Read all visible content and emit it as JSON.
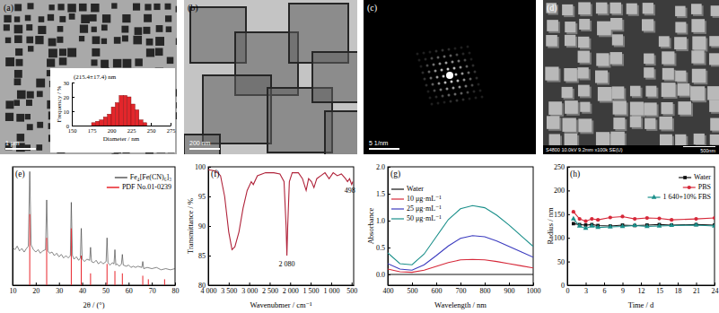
{
  "images": [
    {
      "label": "(a)",
      "scale_bar": "1 μm"
    },
    {
      "label": "(b)",
      "scale_bar": "200 nm"
    },
    {
      "label": "(c)",
      "scale_bar": "5 1/nm"
    },
    {
      "label": "(d)",
      "info": "S4800 10.0kV 9.2mm x100k SE(U)",
      "scale_bar": "500nm"
    }
  ],
  "chart_data": [
    {
      "type": "bar",
      "title": "(215.4±17.4) nm",
      "x_label": "Diameter / nm",
      "y_label": "Frequency / %",
      "bins": [
        175,
        180,
        185,
        190,
        195,
        200,
        205,
        210,
        215,
        220,
        225,
        230,
        235,
        240,
        245
      ],
      "values": [
        2,
        3,
        4,
        6,
        8,
        13,
        16,
        21,
        21,
        20,
        15,
        11,
        4,
        2
      ],
      "color": "#e3262b",
      "xlim": [
        150,
        275
      ],
      "xticks": [
        150,
        175,
        200,
        225,
        250,
        275
      ],
      "ylim": [
        0,
        30
      ],
      "yticks": [
        0,
        10,
        20,
        30
      ]
    },
    {
      "label": "(e)",
      "type": "line",
      "x_label": "2θ / (°)",
      "xlim": [
        10,
        80
      ],
      "xticks": [
        10,
        20,
        30,
        40,
        50,
        60,
        70,
        80
      ],
      "ylim": [
        0,
        100
      ],
      "tick_labels": "x",
      "legend": "upper right",
      "series": [
        {
          "name": "Fe₄[Fe(CN)₆]₃",
          "color": "#333333",
          "x": [
            10,
            11,
            12,
            13,
            14,
            15,
            16,
            16.8,
            17.4,
            18,
            19,
            20,
            21,
            22,
            23,
            24.2,
            24.7,
            25.2,
            26,
            27,
            28,
            29,
            30,
            31,
            32,
            33,
            34,
            34.9,
            35.3,
            35.8,
            36.5,
            37.5,
            38.5,
            39.2,
            39.6,
            40,
            41,
            42,
            43.2,
            43.6,
            44,
            45,
            46,
            47,
            48,
            49,
            50.3,
            50.7,
            51.1,
            52,
            53,
            53.7,
            54.1,
            54.5,
            55,
            56,
            56.9,
            57.3,
            57.7,
            59,
            60,
            61,
            62,
            63,
            64,
            65.7,
            66.1,
            66.5,
            68,
            70,
            72,
            74,
            76,
            78,
            80
          ],
          "values": [
            32,
            30,
            33,
            29,
            31,
            28,
            31,
            33,
            96,
            34,
            30,
            28,
            30,
            27,
            29,
            30,
            72,
            29,
            27,
            28,
            25,
            27,
            24,
            26,
            23,
            25,
            23,
            25,
            70,
            25,
            22,
            24,
            21,
            23,
            48,
            22,
            20,
            22,
            21,
            32,
            20,
            19,
            21,
            18,
            20,
            18,
            20,
            40,
            19,
            17,
            19,
            18,
            30,
            17,
            18,
            16,
            18,
            26,
            17,
            16,
            17,
            15,
            16,
            15,
            16,
            15,
            20,
            14,
            15,
            14,
            15,
            13,
            14,
            13,
            14
          ]
        },
        {
          "name": "PDF No.01-0239",
          "type": "stick",
          "color": "#e8232a",
          "x": [
            17.4,
            24.7,
            35.3,
            39.6,
            43.6,
            50.7,
            54.1,
            57.3,
            66.1,
            68.5,
            75.5
          ],
          "values": [
            60,
            40,
            48,
            25,
            10,
            18,
            12,
            10,
            8,
            5,
            5
          ]
        }
      ]
    },
    {
      "label": "(f)",
      "type": "line",
      "x_label": "Wavenubmer / cm⁻¹",
      "y_label": "Transmittance / %",
      "xlim": [
        4000,
        450
      ],
      "xticks": [
        {
          "value": 4000,
          "label": "4 000"
        },
        {
          "value": 3500,
          "label": "3 500"
        },
        {
          "value": 3000,
          "label": "3 000"
        },
        {
          "value": 2500,
          "label": "2 500"
        },
        {
          "value": 2000,
          "label": "2 000"
        },
        {
          "value": 1500,
          "label": "1 500"
        },
        {
          "value": 1000,
          "label": "1 000"
        },
        500
      ],
      "ylim": [
        80,
        100
      ],
      "yticks": [
        80,
        85,
        90,
        95,
        100
      ],
      "color": "#b0233a",
      "x": [
        4000,
        3900,
        3800,
        3700,
        3600,
        3500,
        3420,
        3350,
        3250,
        3150,
        3050,
        2950,
        2900,
        2800,
        2600,
        2400,
        2250,
        2150,
        2100,
        2080,
        2060,
        2020,
        1950,
        1800,
        1700,
        1610,
        1550,
        1480,
        1420,
        1350,
        1250,
        1150,
        1050,
        950,
        850,
        750,
        650,
        600,
        550,
        498,
        470
      ],
      "values": [
        99.5,
        99.4,
        99.2,
        98.5,
        95,
        89,
        86,
        86.5,
        89,
        93,
        96,
        97.5,
        97,
        98.5,
        99,
        99,
        98.8,
        97.5,
        90,
        85,
        90,
        97.5,
        99,
        99,
        98,
        96,
        98,
        97.5,
        96.5,
        98,
        98.5,
        99,
        98,
        99,
        98.5,
        98.8,
        98,
        97.5,
        98,
        97,
        97.5
      ],
      "annotations": [
        {
          "text": "2 080",
          "x": 2080,
          "y": 84
        },
        {
          "text": "498",
          "x": 498,
          "y": 96.5
        }
      ]
    },
    {
      "label": "(g)",
      "type": "line",
      "x_label": "Wavelength / nm",
      "y_label": "Absorbance",
      "xlim": [
        400,
        1000
      ],
      "xticks": [
        400,
        500,
        600,
        700,
        800,
        900,
        1000
      ],
      "ylim": [
        -0.2,
        2.0
      ],
      "yticks": [
        {
          "value": 0,
          "label": "0.0"
        },
        {
          "value": 0.5,
          "label": "0.5"
        },
        {
          "value": 1,
          "label": "1.0"
        },
        {
          "value": 1.5,
          "label": "1.5"
        },
        {
          "value": 2,
          "label": "2.0"
        }
      ],
      "legend": "upper left",
      "x": [
        400,
        450,
        500,
        550,
        600,
        650,
        700,
        750,
        800,
        850,
        900,
        950,
        1000
      ],
      "series": [
        {
          "name": "Water",
          "color": "#111111",
          "values": [
            0,
            0,
            0,
            0,
            0,
            0,
            0,
            0,
            0,
            0,
            0,
            0,
            0
          ]
        },
        {
          "name": "10 μg·mL⁻¹",
          "color": "#d62839",
          "values": [
            0.1,
            0.05,
            0.04,
            0.08,
            0.15,
            0.22,
            0.27,
            0.28,
            0.27,
            0.24,
            0.2,
            0.16,
            0.12
          ]
        },
        {
          "name": "25 μg·mL⁻¹",
          "color": "#3b3bbf",
          "values": [
            0.2,
            0.1,
            0.08,
            0.18,
            0.35,
            0.53,
            0.67,
            0.72,
            0.7,
            0.62,
            0.52,
            0.42,
            0.32
          ]
        },
        {
          "name": "50 μg·mL⁻¹",
          "color": "#1a8f8a",
          "values": [
            0.4,
            0.2,
            0.18,
            0.38,
            0.7,
            1.02,
            1.22,
            1.28,
            1.24,
            1.1,
            0.92,
            0.72,
            0.52
          ]
        }
      ]
    },
    {
      "label": "(h)",
      "type": "line",
      "x_label": "Time / d",
      "y_label": "Radius / nm",
      "xlim": [
        0,
        24
      ],
      "xticks": [
        0,
        3,
        6,
        9,
        12,
        15,
        18,
        21,
        24
      ],
      "ylim": [
        0,
        250
      ],
      "yticks": [
        0,
        50,
        100,
        150,
        200,
        250
      ],
      "legend": "upper right",
      "x": [
        1,
        2,
        3,
        4,
        5,
        7,
        9,
        11,
        13,
        15,
        17,
        21,
        24
      ],
      "series": [
        {
          "name": "Water",
          "color": "#111111",
          "marker": "square",
          "values": [
            130,
            128,
            127,
            128,
            126,
            125,
            127,
            126,
            127,
            128,
            127,
            128,
            127
          ]
        },
        {
          "name": "PBS",
          "color": "#d62839",
          "marker": "circle",
          "values": [
            155,
            140,
            135,
            140,
            138,
            143,
            145,
            140,
            142,
            141,
            138,
            140,
            142
          ]
        },
        {
          "name": "1 640+10% FBS",
          "color": "#1a8f8a",
          "marker": "triangle",
          "values": [
            140,
            125,
            120,
            125,
            122,
            123,
            124,
            126,
            124,
            125,
            126,
            127,
            125
          ]
        }
      ]
    }
  ]
}
